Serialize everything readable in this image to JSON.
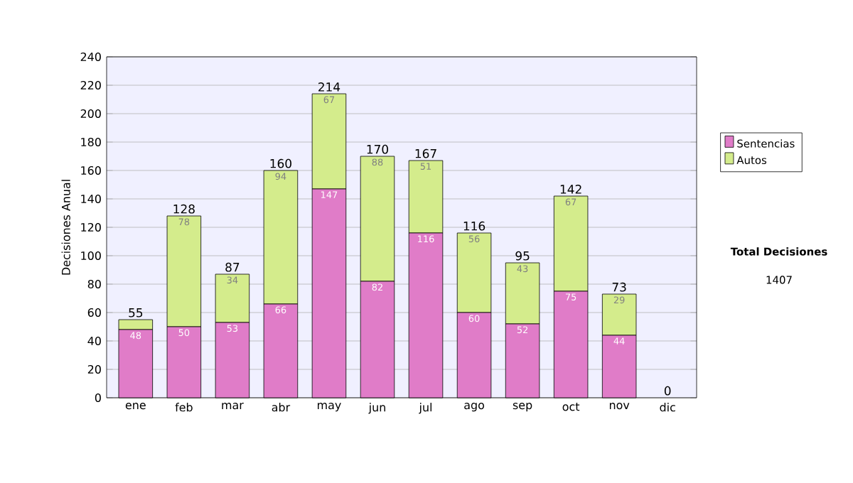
{
  "chart_data": {
    "type": "bar",
    "stacked": true,
    "ylabel": "Decisiones Anual",
    "categories": [
      "ene",
      "feb",
      "mar",
      "abr",
      "may",
      "jun",
      "jul",
      "ago",
      "sep",
      "oct",
      "nov",
      "dic"
    ],
    "series": [
      {
        "name": "Sentencias",
        "color": "#e07cc8",
        "values": [
          48,
          50,
          53,
          66,
          147,
          82,
          116,
          60,
          52,
          75,
          44,
          0
        ],
        "value_labels": [
          "48",
          "50",
          "53",
          "66",
          "147",
          "82",
          "116",
          "60",
          "52",
          "75",
          "44",
          null
        ]
      },
      {
        "name": "Autos",
        "color": "#d4ec8c",
        "values": [
          7,
          78,
          34,
          94,
          67,
          88,
          51,
          56,
          43,
          67,
          29,
          0
        ],
        "value_labels": [
          null,
          "78",
          "34",
          "94",
          "67",
          "88",
          "51",
          "56",
          "43",
          "67",
          "29",
          null
        ]
      }
    ],
    "totals": [
      "55",
      "128",
      "87",
      "160",
      "214",
      "170",
      "167",
      "116",
      "95",
      "142",
      "73",
      "0"
    ],
    "ylim": [
      0,
      240
    ],
    "yticks": [
      0,
      20,
      40,
      60,
      80,
      100,
      120,
      140,
      160,
      180,
      200,
      220,
      240
    ],
    "grid": "y",
    "legend": "right",
    "annotations": [
      "Total Decisiones",
      "1407"
    ]
  }
}
